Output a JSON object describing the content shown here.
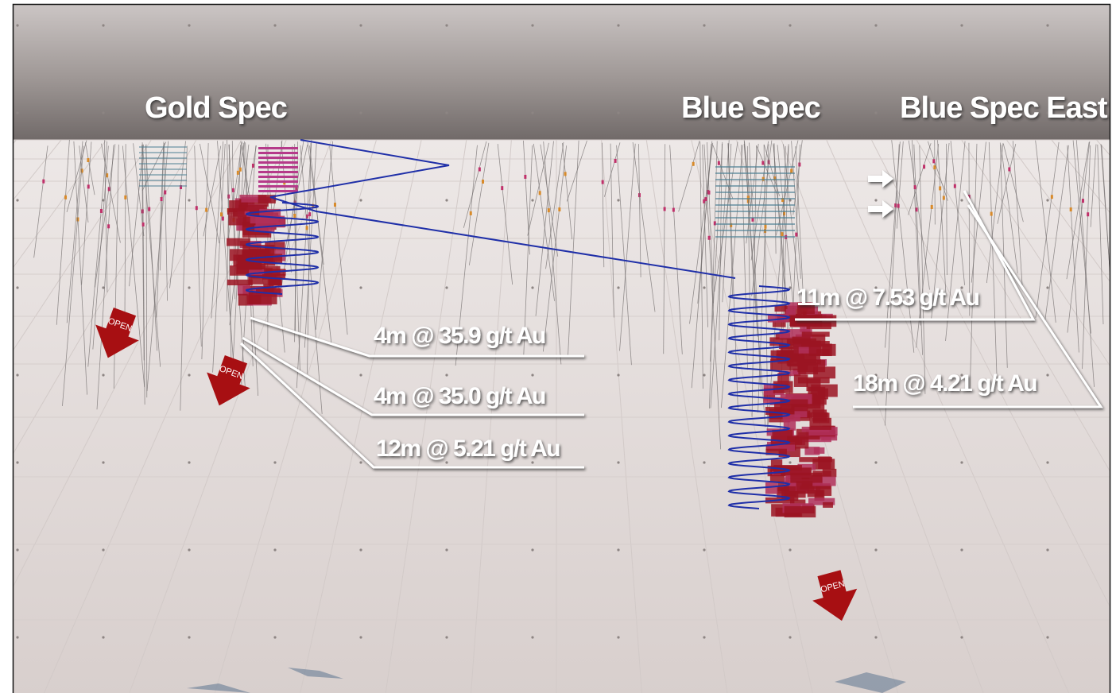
{
  "deposits": [
    "Gold Spec",
    "Blue Spec",
    "Blue Spec East"
  ],
  "intercepts": [
    "4m @ 35.9 g/t Au",
    "4m @ 35.0 g/t Au",
    "12m @ 5.21 g/t Au",
    "11m @ 7.53 g/t Au",
    "18m @ 4.21 g/t Au"
  ],
  "open_markers": [
    "OPEN",
    "OPEN",
    "OPEN"
  ]
}
